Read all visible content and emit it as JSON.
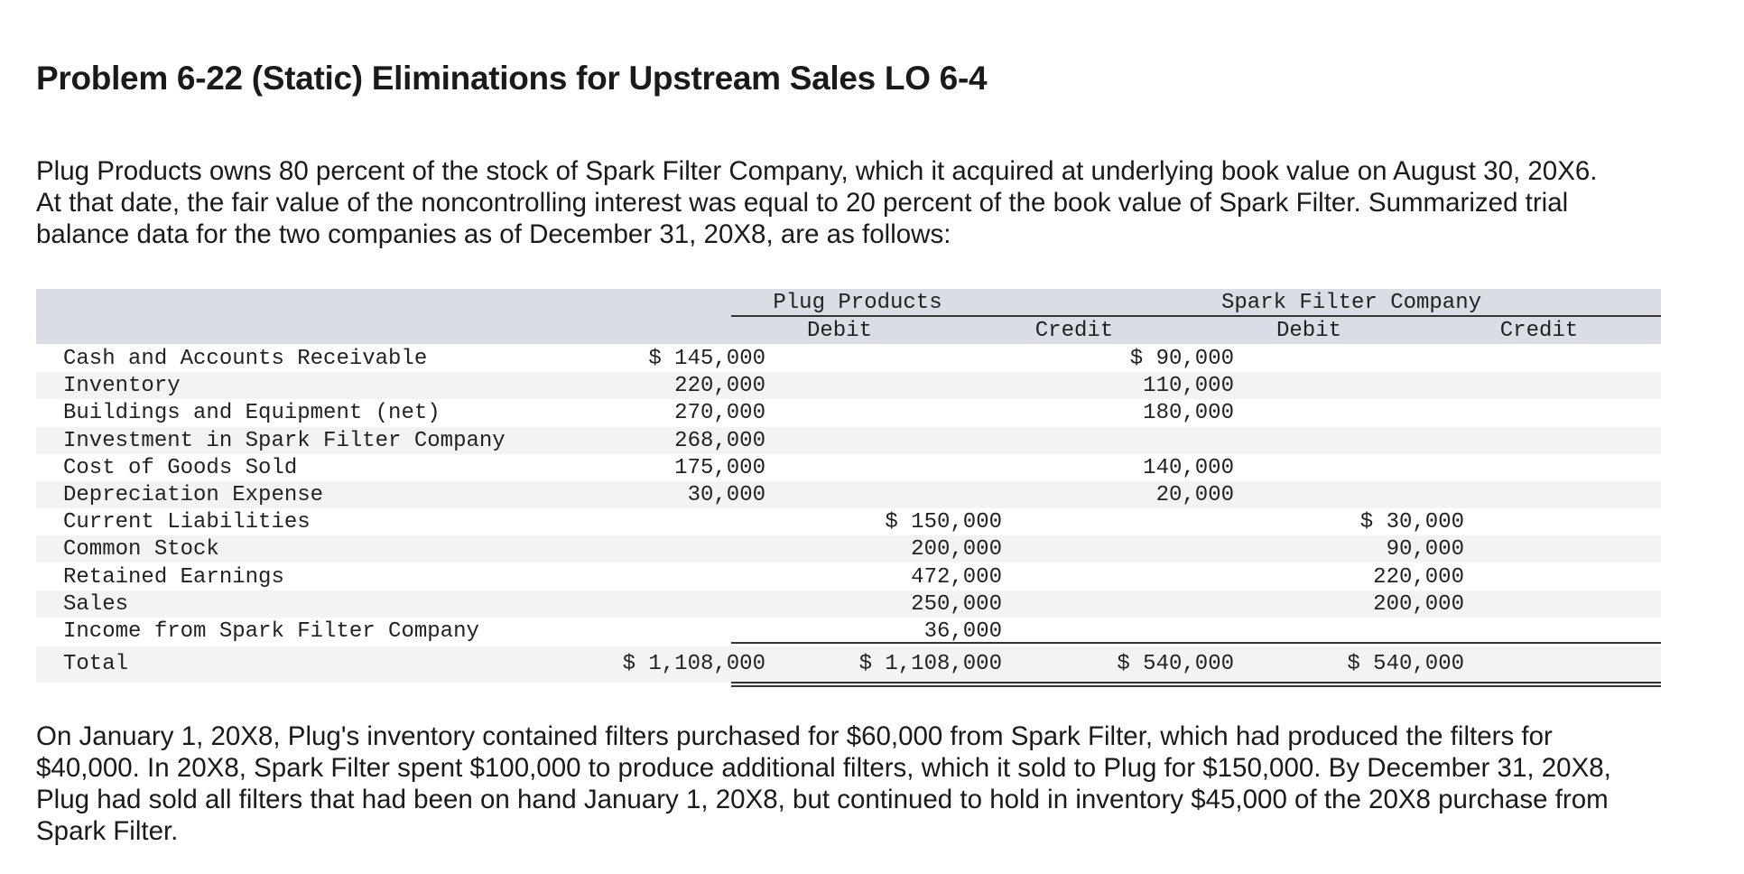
{
  "title": "Problem 6-22 (Static) Eliminations for Upstream Sales LO 6-4",
  "intro": [
    "Plug Products owns 80 percent of the stock of Spark Filter Company, which it acquired at underlying book value on August 30, 20X6.",
    "At that date, the fair value of the noncontrolling interest was equal to 20 percent of the book value of Spark Filter. Summarized trial",
    "balance data for the two companies as of December 31, 20X8, are as follows:"
  ],
  "table": {
    "groups": [
      "Plug Products",
      "Spark Filter Company"
    ],
    "subheads": [
      "Debit",
      "Credit",
      "Debit",
      "Credit"
    ],
    "rows": [
      {
        "label": "Cash and Accounts Receivable",
        "c1": "$ 145,000",
        "c2": "",
        "c3": "$ 90,000",
        "c4": ""
      },
      {
        "label": "Inventory",
        "c1": "220,000",
        "c2": "",
        "c3": "110,000",
        "c4": ""
      },
      {
        "label": "Buildings and Equipment (net)",
        "c1": "270,000",
        "c2": "",
        "c3": "180,000",
        "c4": ""
      },
      {
        "label": "Investment in Spark Filter Company",
        "c1": "268,000",
        "c2": "",
        "c3": "",
        "c4": ""
      },
      {
        "label": "Cost of Goods Sold",
        "c1": "175,000",
        "c2": "",
        "c3": "140,000",
        "c4": ""
      },
      {
        "label": "Depreciation Expense",
        "c1": "30,000",
        "c2": "",
        "c3": "20,000",
        "c4": ""
      },
      {
        "label": "Current Liabilities",
        "c1": "",
        "c2": "$ 150,000",
        "c3": "",
        "c4": "$ 30,000"
      },
      {
        "label": "Common Stock",
        "c1": "",
        "c2": "200,000",
        "c3": "",
        "c4": "90,000"
      },
      {
        "label": "Retained Earnings",
        "c1": "",
        "c2": "472,000",
        "c3": "",
        "c4": "220,000"
      },
      {
        "label": "Sales",
        "c1": "",
        "c2": "250,000",
        "c3": "",
        "c4": "200,000"
      },
      {
        "label": "Income from Spark Filter Company",
        "c1": "",
        "c2": "36,000",
        "c3": "",
        "c4": ""
      }
    ],
    "total": {
      "label": "Total",
      "c1": "$ 1,108,000",
      "c2": "$ 1,108,000",
      "c3": "$ 540,000",
      "c4": "$ 540,000"
    }
  },
  "outro": [
    "On January 1, 20X8, Plug's inventory contained filters purchased for $60,000 from Spark Filter, which had produced the filters for",
    "$40,000. In 20X8, Spark Filter spent $100,000 to produce additional filters, which it sold to Plug for $150,000. By December 31, 20X8,",
    "Plug had sold all filters that had been on hand January 1, 20X8, but continued to hold in inventory $45,000 of the 20X8 purchase from",
    "Spark Filter."
  ]
}
